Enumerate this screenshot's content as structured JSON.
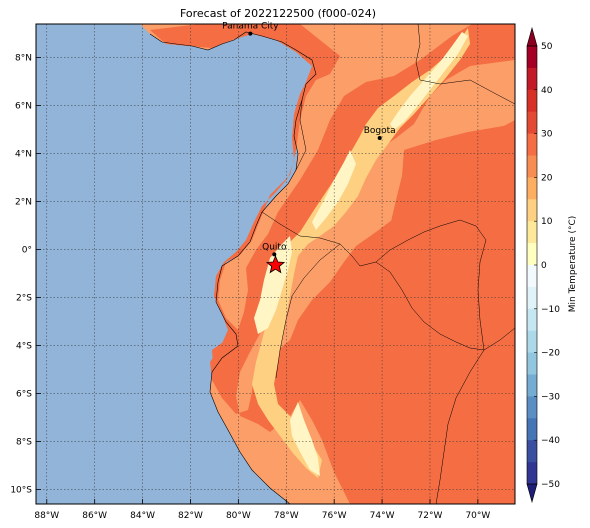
{
  "title": "Forecast of 2022122500 (f000-024)",
  "x_ticks": [
    {
      "lon": -88,
      "label": "88°W"
    },
    {
      "lon": -86,
      "label": "86°W"
    },
    {
      "lon": -84,
      "label": "84°W"
    },
    {
      "lon": -82,
      "label": "82°W"
    },
    {
      "lon": -80,
      "label": "80°W"
    },
    {
      "lon": -78,
      "label": "78°W"
    },
    {
      "lon": -76,
      "label": "76°W"
    },
    {
      "lon": -74,
      "label": "74°W"
    },
    {
      "lon": -72,
      "label": "72°W"
    },
    {
      "lon": -70,
      "label": "70°W"
    }
  ],
  "y_ticks": [
    {
      "lat": 8,
      "label": "8°N"
    },
    {
      "lat": 6,
      "label": "6°N"
    },
    {
      "lat": 4,
      "label": "4°N"
    },
    {
      "lat": 2,
      "label": "2°N"
    },
    {
      "lat": 0,
      "label": "0°"
    },
    {
      "lat": -2,
      "label": "2°S"
    },
    {
      "lat": -4,
      "label": "4°S"
    },
    {
      "lat": -6,
      "label": "6°S"
    },
    {
      "lat": -8,
      "label": "8°S"
    },
    {
      "lat": -10,
      "label": "10°S"
    }
  ],
  "cities": [
    {
      "name": "Panama City",
      "lon": -79.5,
      "lat": 9.0
    },
    {
      "name": "Bogota",
      "lon": -74.1,
      "lat": 4.65
    },
    {
      "name": "Quito",
      "lon": -78.5,
      "lat": -0.2
    }
  ],
  "marker": {
    "name": "star",
    "lon": -78.45,
    "lat": -0.65,
    "color": "#ff0000"
  },
  "colorbar": {
    "label": "Min Temperature (°C)",
    "ticks": [
      50,
      40,
      30,
      20,
      10,
      0,
      -10,
      -20,
      -30,
      -40,
      -50
    ],
    "tick_labels": [
      "50",
      "40",
      "30",
      "20",
      "10",
      "0",
      "−10",
      "−20",
      "−30",
      "−40",
      "−50"
    ],
    "bands": [
      {
        "from": 45,
        "to": 50,
        "color": "#a50026"
      },
      {
        "from": 40,
        "to": 45,
        "color": "#c21b27"
      },
      {
        "from": 35,
        "to": 40,
        "color": "#d73027"
      },
      {
        "from": 30,
        "to": 35,
        "color": "#e34a33"
      },
      {
        "from": 25,
        "to": 30,
        "color": "#f46d43"
      },
      {
        "from": 20,
        "to": 25,
        "color": "#f88d52"
      },
      {
        "from": 15,
        "to": 20,
        "color": "#fdae61"
      },
      {
        "from": 10,
        "to": 15,
        "color": "#fed081"
      },
      {
        "from": 5,
        "to": 10,
        "color": "#fee99a"
      },
      {
        "from": 0,
        "to": 5,
        "color": "#ffffbf"
      },
      {
        "from": -5,
        "to": 0,
        "color": "#f2fafe"
      },
      {
        "from": -10,
        "to": -5,
        "color": "#e0f3f8"
      },
      {
        "from": -15,
        "to": -10,
        "color": "#c6e6f1"
      },
      {
        "from": -20,
        "to": -15,
        "color": "#abd9e9"
      },
      {
        "from": -25,
        "to": -20,
        "color": "#92c5de"
      },
      {
        "from": -30,
        "to": -25,
        "color": "#74add1"
      },
      {
        "from": -35,
        "to": -30,
        "color": "#5b8fc4"
      },
      {
        "from": -40,
        "to": -35,
        "color": "#4575b4"
      },
      {
        "from": -45,
        "to": -40,
        "color": "#3b4fa0"
      },
      {
        "from": -50,
        "to": -45,
        "color": "#313695"
      }
    ],
    "over_color": "#8b0021",
    "under_color": "#1e1e78"
  },
  "colors": {
    "ocean": "#92b4d9",
    "land_20_25": "#fc9e68",
    "land_25_30": "#f46d43",
    "land_10_15": "#fed081",
    "land_0_10": "#fff5c5"
  }
}
